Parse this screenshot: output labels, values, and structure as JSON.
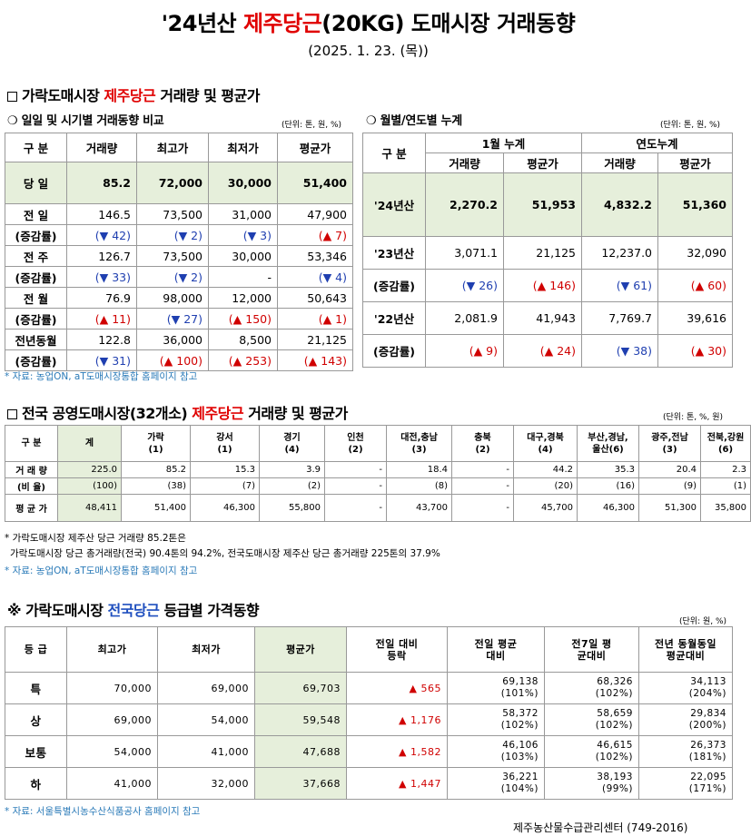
{
  "header": {
    "title_pre": "'24년산 ",
    "title_red": "제주당근",
    "title_post": "(20KG) 도매시장 거래동향",
    "date": "(2025. 1. 23. (목))"
  },
  "section1": {
    "title_pre": "가락도매시장 ",
    "title_red": "제주당근",
    "title_post": " 거래량 및 평균가",
    "left": {
      "subtitle": "❍ 일일 및 시기별 거래동향 비교",
      "unit": "(단위: 톤, 원, %)",
      "headers": [
        "구  분",
        "거래량",
        "최고가",
        "최저가",
        "평균가"
      ],
      "today": {
        "label": "당  일",
        "values": [
          "85.2",
          "72,000",
          "30,000",
          "51,400"
        ]
      },
      "rows": [
        {
          "label": "전  일",
          "values": [
            "146.5",
            "73,500",
            "31,000",
            "47,900"
          ],
          "sub_label": "(증감률)",
          "changes": [
            "(▼ 42)",
            "(▼ 2)",
            "(▼ 3)",
            "(▲ 7)"
          ]
        },
        {
          "label": "전  주",
          "values": [
            "126.7",
            "73,500",
            "30,000",
            "53,346"
          ],
          "sub_label": "(증감률)",
          "changes": [
            "(▼ 33)",
            "(▼ 2)",
            "-",
            "(▼ 4)"
          ]
        },
        {
          "label": "전  월",
          "values": [
            "76.9",
            "98,000",
            "12,000",
            "50,643"
          ],
          "sub_label": "(증감률)",
          "changes": [
            "(▲ 11)",
            "(▼ 27)",
            "(▲ 150)",
            "(▲ 1)"
          ]
        },
        {
          "label": "전년동월",
          "values": [
            "122.8",
            "36,000",
            "8,500",
            "21,125"
          ],
          "sub_label": "(증감률)",
          "changes": [
            "(▼ 31)",
            "(▲ 100)",
            "(▲ 253)",
            "(▲ 143)"
          ]
        }
      ]
    },
    "right": {
      "subtitle": "❍ 월별/연도별 누계",
      "unit": "(단위: 톤, 원, %)",
      "header_label": "구  분",
      "group1": "1월 누계",
      "group2": "연도누계",
      "cols": [
        "거래량",
        "평균가",
        "거래량",
        "평균가"
      ],
      "current": {
        "label": "'24년산",
        "values": [
          "2,270.2",
          "51,953",
          "4,832.2",
          "51,360"
        ]
      },
      "rows": [
        {
          "label": "'23년산",
          "values": [
            "3,071.1",
            "21,125",
            "12,237.0",
            "32,090"
          ],
          "sub_label": "(증감률)",
          "changes": [
            "(▼ 26)",
            "(▲ 146)",
            "(▼ 61)",
            "(▲ 60)"
          ]
        },
        {
          "label": "'22년산",
          "values": [
            "2,081.9",
            "41,943",
            "7,769.7",
            "39,616"
          ],
          "sub_label": "(증감률)",
          "changes": [
            "(▲ 9)",
            "(▲ 24)",
            "(▼ 38)",
            "(▲ 30)"
          ]
        }
      ]
    },
    "source": "* 자료: 농업ON, aT도매시장통합 홈페이지 참고"
  },
  "section2": {
    "title_pre": "전국 공영도매시장(32개소) ",
    "title_red": "제주당근",
    "title_post": " 거래량 및 평균가",
    "unit": "(단위: 톤, %, 원)",
    "headers": [
      {
        "l1": "구  분",
        "l2": ""
      },
      {
        "l1": "계",
        "l2": ""
      },
      {
        "l1": "가락",
        "l2": "(1)"
      },
      {
        "l1": "강서",
        "l2": "(1)"
      },
      {
        "l1": "경기",
        "l2": "(4)"
      },
      {
        "l1": "인천",
        "l2": "(2)"
      },
      {
        "l1": "대전,충남",
        "l2": "(3)"
      },
      {
        "l1": "충북",
        "l2": "(2)"
      },
      {
        "l1": "대구,경북",
        "l2": "(4)"
      },
      {
        "l1": "부산,경남,",
        "l2": "울산(6)"
      },
      {
        "l1": "광주,전남",
        "l2": "(3)"
      },
      {
        "l1": "전북,강원",
        "l2": "(6)"
      }
    ],
    "volume_label": "거 래 량",
    "volume": [
      "225.0",
      "85.2",
      "15.3",
      "3.9",
      "-",
      "18.4",
      "-",
      "44.2",
      "35.3",
      "20.4",
      "2.3"
    ],
    "ratio_label": "(비 율)",
    "ratio": [
      "(100)",
      "(38)",
      "(7)",
      "(2)",
      "-",
      "(8)",
      "-",
      "(20)",
      "(16)",
      "(9)",
      "(1)"
    ],
    "price_label": "평 균 가",
    "price": [
      "48,411",
      "51,400",
      "46,300",
      "55,800",
      "-",
      "43,700",
      "-",
      "45,700",
      "46,300",
      "51,300",
      "35,800"
    ],
    "note1": "* 가락도매시장 제주산 당근 거래량 85.2톤은",
    "note2": "가락도매시장 당근 총거래량(전국) 90.4톤의 94.2%, 전국도매시장 제주산 당근 총거래량 225톤의 37.9%",
    "source": "* 자료: 농업ON, aT도매시장통합 홈페이지 참고"
  },
  "section3": {
    "title_pre": "※ 가락도매시장 ",
    "title_blue": "전국당근",
    "title_post": " 등급별 가격동향",
    "unit": "(단위: 원, %)",
    "headers": [
      "등  급",
      "최고가",
      "최저가",
      "평균가",
      "전일 대비등락",
      "전일 평균대비",
      "전7일 평균대비",
      "전년 동월동일 평균대비"
    ],
    "rows": [
      {
        "grade": "특",
        "max": "70,000",
        "min": "69,000",
        "avg": "69,703",
        "diff": "▲ 565",
        "prev_day": "69,138",
        "prev_day_pct": "(101%)",
        "prev_7": "68,326",
        "prev_7_pct": "(102%)",
        "prev_year": "34,113",
        "prev_year_pct": "(204%)"
      },
      {
        "grade": "상",
        "max": "69,000",
        "min": "54,000",
        "avg": "59,548",
        "diff": "▲ 1,176",
        "prev_day": "58,372",
        "prev_day_pct": "(102%)",
        "prev_7": "58,659",
        "prev_7_pct": "(102%)",
        "prev_year": "29,834",
        "prev_year_pct": "(200%)"
      },
      {
        "grade": "보통",
        "max": "54,000",
        "min": "41,000",
        "avg": "47,688",
        "diff": "▲ 1,582",
        "prev_day": "46,106",
        "prev_day_pct": "(103%)",
        "prev_7": "46,615",
        "prev_7_pct": "(102%)",
        "prev_year": "26,373",
        "prev_year_pct": "(181%)"
      },
      {
        "grade": "하",
        "max": "41,000",
        "min": "32,000",
        "avg": "37,668",
        "diff": "▲ 1,447",
        "prev_day": "36,221",
        "prev_day_pct": "(104%)",
        "prev_7": "38,193",
        "prev_7_pct": "(99%)",
        "prev_year": "22,095",
        "prev_year_pct": "(171%)"
      }
    ],
    "source": "* 자료: 서울특별시농수산식품공사 홈페이지 참고",
    "footer": "제주농산물수급관리센터 (749-2016)"
  },
  "colors": {
    "accent_red": "#e00000",
    "accent_blue": "#1f4fbf",
    "highlight_green": "#e6efdb",
    "note_blue": "#2a7ab8"
  }
}
